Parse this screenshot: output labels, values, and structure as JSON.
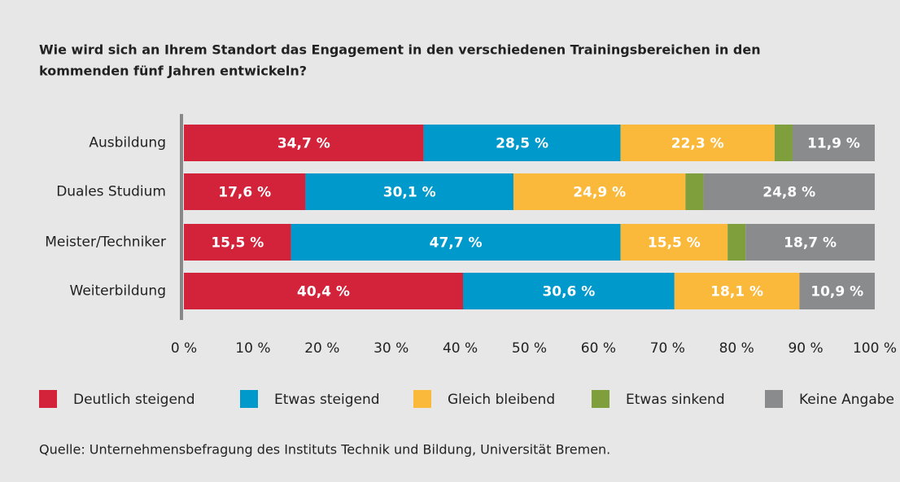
{
  "chart_data": {
    "type": "stacked-bar-horizontal",
    "title": "Wie wird sich an Ihrem Standort das Engagement in den verschiedenen Trainingsbereichen in den",
    "title_line2": "kommenden fünf Jahren entwickeln?",
    "categories": [
      "Ausbildung",
      "Duales Studium",
      "Meister/Techniker",
      "Weiterbildung"
    ],
    "series": [
      {
        "name": "Deutlich steigend",
        "color": "#d2233a",
        "values": [
          34.7,
          17.6,
          15.5,
          40.4
        ],
        "value_labels": [
          "34,7 %",
          "17,6 %",
          "15,5 %",
          "40,4 %"
        ]
      },
      {
        "name": "Etwas steigend",
        "color": "#0099cc",
        "values": [
          28.5,
          30.1,
          47.7,
          30.6
        ],
        "value_labels": [
          "28,5 %",
          "30,1 %",
          "47,7 %",
          "30,6 %"
        ]
      },
      {
        "name": "Gleich bleibend",
        "color": "#fbb93c",
        "values": [
          22.3,
          24.9,
          15.5,
          18.1
        ],
        "value_labels": [
          "22,3 %",
          "24,9 %",
          "15,5 %",
          "18,1 %"
        ]
      },
      {
        "name": "Etwas sinkend",
        "color": "#7f9f3c",
        "values": [
          2.6,
          2.6,
          2.6,
          0
        ]
      },
      {
        "name": "Keine Angabe",
        "color": "#8a8b8d",
        "values": [
          11.9,
          24.8,
          18.7,
          10.9
        ],
        "value_labels": [
          "11,9 %",
          "24,8 %",
          "18,7 %",
          "10,9 %"
        ]
      }
    ],
    "xlim": [
      0,
      100
    ],
    "xticks": [
      {
        "value": 0,
        "label": "0 %"
      },
      {
        "value": 10,
        "label": "10 %"
      },
      {
        "value": 20,
        "label": "20 %"
      },
      {
        "value": 30,
        "label": "30 %"
      },
      {
        "value": 40,
        "label": "40 %"
      },
      {
        "value": 50,
        "label": "50 %"
      },
      {
        "value": 60,
        "label": "60 %"
      },
      {
        "value": 70,
        "label": "70 %"
      },
      {
        "value": 80,
        "label": "80 %"
      },
      {
        "value": 90,
        "label": "90 %"
      },
      {
        "value": 100,
        "label": "100 %"
      }
    ],
    "source": "Quelle: Unternehmensbefragung des Instituts Technik und Bildung, Universität Bremen."
  }
}
